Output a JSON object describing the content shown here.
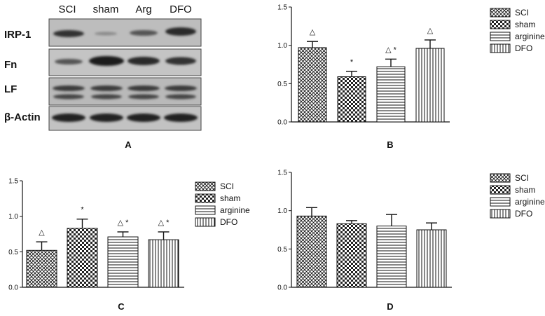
{
  "blot": {
    "lanes": [
      "SCI",
      "sham",
      "Arg",
      "DFO"
    ],
    "rows": [
      "IRP-1",
      "Fn",
      "LF",
      "β-Actin"
    ],
    "panel_label": "A"
  },
  "colors": {
    "ink": "#111111",
    "bar_fill": "#ffffff",
    "blot_bg": "#c9c9c9",
    "band": "#2a2a2a"
  },
  "chart_data": [
    {
      "type": "bar",
      "panel_label": "B",
      "categories": [
        "SCI",
        "sham",
        "arginine",
        "DFO"
      ],
      "values": [
        0.97,
        0.59,
        0.72,
        0.96
      ],
      "errors": [
        0.08,
        0.07,
        0.1,
        0.11
      ],
      "markers": [
        "△",
        "*",
        "△ *",
        "△"
      ],
      "legend": [
        "SCI",
        "sham",
        "arginine",
        "DFO"
      ],
      "legend_position": "right",
      "ylim": [
        0,
        1.5
      ],
      "yticks": [
        "0.0",
        "0.5",
        "1.0",
        "1.5"
      ],
      "grid": false
    },
    {
      "type": "bar",
      "panel_label": "C",
      "categories": [
        "SCI",
        "sham",
        "arginine",
        "DFO"
      ],
      "values": [
        0.52,
        0.83,
        0.71,
        0.67
      ],
      "errors": [
        0.12,
        0.13,
        0.07,
        0.11
      ],
      "markers": [
        "△",
        "*",
        "△ *",
        "△ *"
      ],
      "legend": [
        "SCI",
        "sham",
        "arginine",
        "DFO"
      ],
      "legend_position": "right",
      "ylim": [
        0,
        1.5
      ],
      "yticks": [
        "0.0",
        "0.5",
        "1.0",
        "1.5"
      ],
      "grid": false
    },
    {
      "type": "bar",
      "panel_label": "D",
      "categories": [
        "SCI",
        "sham",
        "arginine",
        "DFO"
      ],
      "values": [
        0.93,
        0.83,
        0.8,
        0.75
      ],
      "errors": [
        0.11,
        0.04,
        0.15,
        0.09
      ],
      "markers": [
        "",
        "",
        "",
        ""
      ],
      "legend": [
        "SCI",
        "sham",
        "arginine",
        "DFO"
      ],
      "legend_position": "right",
      "ylim": [
        0,
        1.5
      ],
      "yticks": [
        "0.0",
        "0.5",
        "1.0",
        "1.5"
      ],
      "grid": false
    }
  ]
}
